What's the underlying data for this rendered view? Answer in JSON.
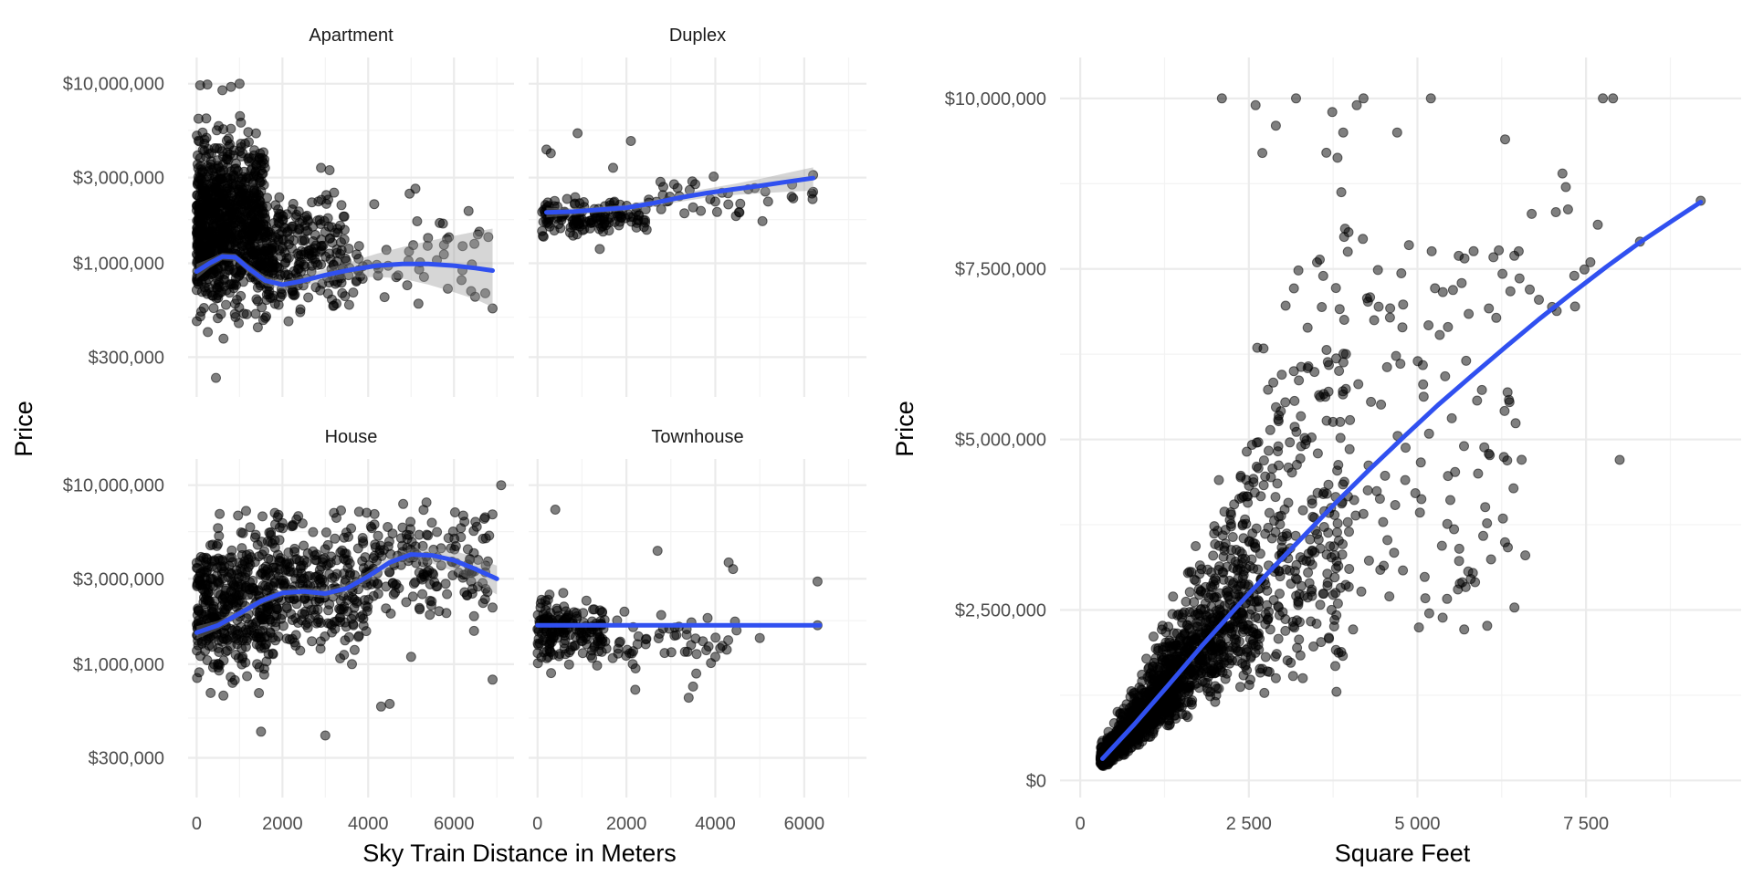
{
  "chart_data": [
    {
      "type": "scatter",
      "facet_by": "Property Type",
      "x_label": "Sky Train Distance in Meters",
      "y_label": "Price",
      "y_scale": "log10",
      "x_lim": [
        -200,
        7400
      ],
      "y_lim": [
        180000,
        14000000
      ],
      "x_ticks": [
        0,
        2000,
        4000,
        6000
      ],
      "x_tick_labels": [
        "0",
        "2000",
        "4000",
        "6000"
      ],
      "y_ticks": [
        300000,
        1000000,
        3000000,
        10000000
      ],
      "y_tick_labels": [
        "$300,000",
        "$1,000,000",
        "$3,000,000",
        "$10,000,000"
      ],
      "grid": true,
      "smoother": "loess with confidence band",
      "panels": [
        {
          "name": "Apartment",
          "point_clusters": [
            {
              "x_range": [
                0,
                1600
              ],
              "y_range": [
                350000,
                8000000
              ],
              "count": 900,
              "seed": 11
            },
            {
              "x_range": [
                1600,
                3500
              ],
              "y_range": [
                380000,
                3500000
              ],
              "count": 260,
              "seed": 12
            },
            {
              "x_range": [
                3500,
                6900
              ],
              "y_range": [
                450000,
                2600000
              ],
              "count": 55,
              "seed": 13
            }
          ],
          "points": [
            [
              80,
              9800000
            ],
            [
              250,
              9900000
            ],
            [
              800,
              9600000
            ],
            [
              600,
              9200000
            ],
            [
              1000,
              10000000
            ],
            [
              450,
              230000
            ],
            [
              6800,
              1400000
            ],
            [
              6900,
              560000
            ],
            [
              6400,
              700000
            ],
            [
              5100,
              2600000
            ],
            [
              2900,
              3400000
            ],
            [
              3100,
              3300000
            ]
          ],
          "smooth": {
            "x": [
              0,
              300,
              600,
              900,
              1200,
              1600,
              2000,
              2400,
              3000,
              3600,
              4200,
              4800,
              5400,
              6000,
              6500,
              6900
            ],
            "y": [
              900000,
              1000000,
              1090000,
              1080000,
              940000,
              800000,
              760000,
              790000,
              860000,
              920000,
              970000,
              990000,
              990000,
              970000,
              940000,
              910000
            ],
            "band_lower": [
              820000,
              940000,
              1040000,
              1030000,
              890000,
              750000,
              720000,
              740000,
              790000,
              830000,
              840000,
              820000,
              760000,
              690000,
              630000,
              570000
            ],
            "band_upper": [
              990000,
              1060000,
              1140000,
              1130000,
              990000,
              850000,
              800000,
              840000,
              930000,
              1020000,
              1130000,
              1230000,
              1330000,
              1420000,
              1500000,
              1560000
            ]
          }
        },
        {
          "name": "Duplex",
          "point_clusters": [
            {
              "x_range": [
                100,
                2500
              ],
              "y_range": [
                1300000,
                2500000
              ],
              "count": 150,
              "seed": 21
            },
            {
              "x_range": [
                2500,
                6200
              ],
              "y_range": [
                1600000,
                3600000
              ],
              "count": 40,
              "seed": 22
            }
          ],
          "points": [
            [
              200,
              4300000
            ],
            [
              300,
              4100000
            ],
            [
              900,
              5300000
            ],
            [
              2100,
              4800000
            ],
            [
              6200,
              3100000
            ],
            [
              6200,
              2500000
            ],
            [
              1400,
              1200000
            ],
            [
              1700,
              3400000
            ]
          ],
          "smooth": {
            "x": [
              200,
              800,
              1400,
              2000,
              2600,
              3200,
              3800,
              4400,
              5000,
              5600,
              6200
            ],
            "y": [
              1920000,
              1940000,
              1990000,
              2040000,
              2160000,
              2320000,
              2460000,
              2580000,
              2700000,
              2840000,
              2980000
            ],
            "band_lower": [
              1800000,
              1850000,
              1910000,
              1960000,
              2060000,
              2200000,
              2320000,
              2400000,
              2450000,
              2500000,
              2540000
            ],
            "band_upper": [
              2040000,
              2030000,
              2070000,
              2120000,
              2260000,
              2440000,
              2600000,
              2760000,
              2950000,
              3180000,
              3420000
            ]
          }
        },
        {
          "name": "House",
          "point_clusters": [
            {
              "x_range": [
                0,
                1600
              ],
              "y_range": [
                500000,
                9000000
              ],
              "count": 380,
              "seed": 31
            },
            {
              "x_range": [
                1600,
                4000
              ],
              "y_range": [
                800000,
                9500000
              ],
              "count": 330,
              "seed": 32
            },
            {
              "x_range": [
                4000,
                6900
              ],
              "y_range": [
                1400000,
                9000000
              ],
              "count": 170,
              "seed": 33
            }
          ],
          "points": [
            [
              7100,
              10000000
            ],
            [
              6900,
              820000
            ],
            [
              3000,
              400000
            ],
            [
              1500,
              420000
            ],
            [
              4500,
              600000
            ],
            [
              5000,
              1100000
            ],
            [
              4300,
              580000
            ]
          ],
          "smooth": {
            "x": [
              0,
              500,
              1000,
              1500,
              2000,
              2500,
              3000,
              3500,
              4000,
              4500,
              5000,
              5500,
              6000,
              6500,
              7000
            ],
            "y": [
              1500000,
              1650000,
              1920000,
              2250000,
              2500000,
              2550000,
              2480000,
              2650000,
              3100000,
              3700000,
              4100000,
              4050000,
              3800000,
              3400000,
              3000000
            ],
            "band_lower": [
              1380000,
              1560000,
              1830000,
              2150000,
              2380000,
              2420000,
              2340000,
              2480000,
              2880000,
              3420000,
              3780000,
              3650000,
              3300000,
              2850000,
              2450000
            ],
            "band_upper": [
              1630000,
              1750000,
              2010000,
              2350000,
              2620000,
              2680000,
              2620000,
              2820000,
              3320000,
              3980000,
              4420000,
              4450000,
              4300000,
              3950000,
              3550000
            ]
          }
        },
        {
          "name": "Townhouse",
          "point_clusters": [
            {
              "x_range": [
                0,
                1500
              ],
              "y_range": [
                850000,
                2700000
              ],
              "count": 180,
              "seed": 41
            },
            {
              "x_range": [
                1500,
                4500
              ],
              "y_range": [
                800000,
                2300000
              ],
              "count": 55,
              "seed": 42
            }
          ],
          "points": [
            [
              400,
              7300000
            ],
            [
              4300,
              3700000
            ],
            [
              4400,
              3400000
            ],
            [
              2700,
              4300000
            ],
            [
              6300,
              2900000
            ],
            [
              6300,
              1650000
            ],
            [
              3400,
              650000
            ],
            [
              3500,
              750000
            ],
            [
              2200,
              720000
            ],
            [
              5000,
              1400000
            ],
            [
              4000,
              1100000
            ]
          ],
          "smooth": {
            "x": [
              0,
              6350
            ],
            "y": [
              1650000,
              1650000
            ],
            "band_lower": [
              1620000,
              1620000
            ],
            "band_upper": [
              1680000,
              1680000
            ]
          }
        }
      ]
    },
    {
      "type": "scatter",
      "x_label": "Square Feet",
      "y_label": "Price",
      "x_lim": [
        -300,
        9800
      ],
      "y_lim": [
        -250000,
        10600000
      ],
      "x_ticks": [
        0,
        2500,
        5000,
        7500
      ],
      "x_tick_labels": [
        "0",
        "2 500",
        "5 000",
        "7 500"
      ],
      "y_ticks": [
        0,
        2500000,
        5000000,
        7500000,
        10000000
      ],
      "y_tick_labels": [
        "$0",
        "$2,500,000",
        "$5,000,000",
        "$7,500,000",
        "$10,000,000"
      ],
      "grid": true,
      "smoother": "loess",
      "points": [
        [
          2100,
          10000000
        ],
        [
          2600,
          9900000
        ],
        [
          3200,
          10000000
        ],
        [
          4200,
          10000000
        ],
        [
          5200,
          10000000
        ],
        [
          7750,
          10000000
        ],
        [
          7900,
          10000000
        ],
        [
          2700,
          9200000
        ],
        [
          2900,
          9600000
        ],
        [
          3900,
          9500000
        ],
        [
          4700,
          9500000
        ],
        [
          8000,
          4700000
        ],
        [
          6600,
          3300000
        ],
        [
          5600,
          2800000
        ],
        [
          9200,
          8500000
        ],
        [
          8300,
          7900000
        ],
        [
          6300,
          9400000
        ],
        [
          7150,
          8900000
        ],
        [
          7200,
          8700000
        ],
        [
          4100,
          9900000
        ],
        [
          5900,
          4500000
        ],
        [
          3300,
          1500000
        ],
        [
          3800,
          1300000
        ],
        [
          2900,
          1500000
        ],
        [
          330,
          230000
        ]
      ],
      "point_clusters": [
        {
          "x_range": [
            300,
            1300
          ],
          "y_range": [
            250000,
            1800000
          ],
          "count": 900,
          "seed": 51,
          "trend": true
        },
        {
          "x_range": [
            1300,
            2500
          ],
          "y_range": [
            600000,
            3800000
          ],
          "count": 600,
          "seed": 52,
          "trend": true
        },
        {
          "x_range": [
            2500,
            4000
          ],
          "y_range": [
            1200000,
            7000000
          ],
          "count": 320,
          "seed": 53,
          "trend": true
        },
        {
          "x_range": [
            4000,
            6600
          ],
          "y_range": [
            2200000,
            8000000
          ],
          "count": 120,
          "seed": 54,
          "trend": false
        },
        {
          "x_range": [
            6600,
            8200
          ],
          "y_range": [
            6800000,
            8600000
          ],
          "count": 12,
          "seed": 55,
          "trend": false
        }
      ],
      "smooth": {
        "x": [
          330,
          800,
          1300,
          1800,
          2300,
          2800,
          3300,
          3800,
          4300,
          4800,
          5300,
          5800,
          6300,
          6800,
          7300,
          7800,
          8300,
          8800,
          9200
        ],
        "y": [
          320000,
          820000,
          1390000,
          1970000,
          2520000,
          3060000,
          3570000,
          4080000,
          4570000,
          5040000,
          5500000,
          5930000,
          6350000,
          6760000,
          7150000,
          7530000,
          7890000,
          8220000,
          8480000
        ]
      }
    }
  ]
}
